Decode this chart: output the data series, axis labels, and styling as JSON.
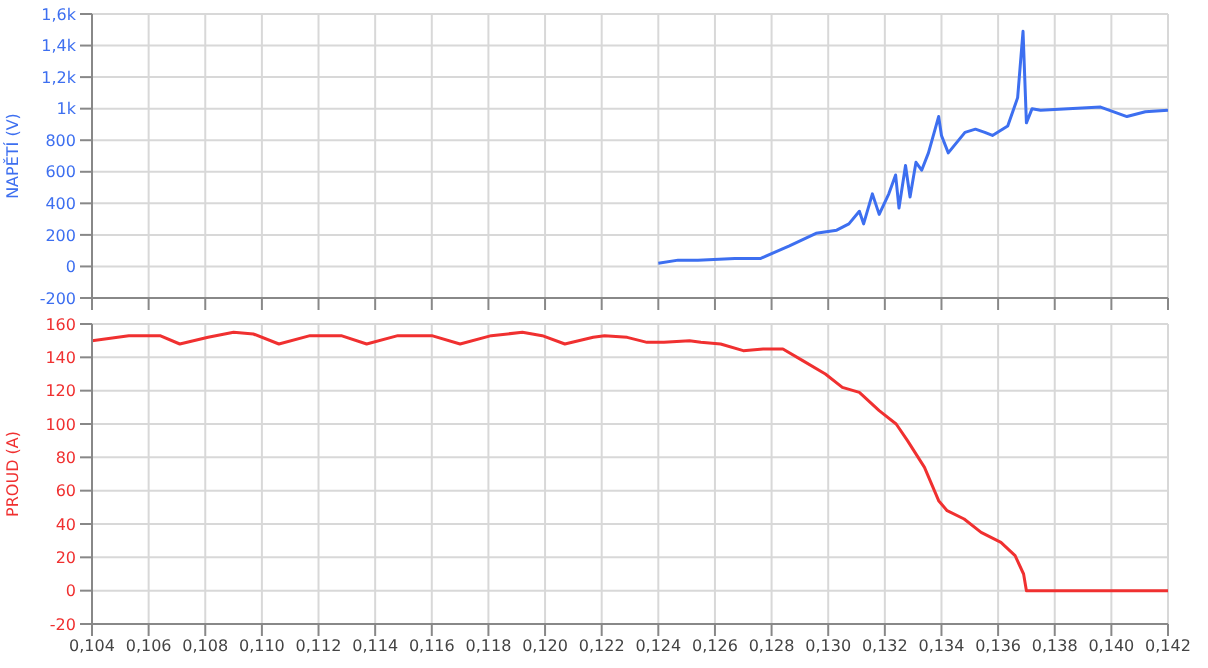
{
  "chart_data": [
    {
      "type": "line",
      "ylabel": "NAPĚTÍ (V)",
      "x": [
        0.124,
        0.1247,
        0.1254,
        0.1267,
        0.1276,
        0.12863,
        0.12957,
        0.1303,
        0.13073,
        0.1311,
        0.13125,
        0.13156,
        0.1318,
        0.13214,
        0.13238,
        0.1325,
        0.13273,
        0.13289,
        0.1331,
        0.1333,
        0.13354,
        0.1339,
        0.134,
        0.13424,
        0.13483,
        0.1352,
        0.13553,
        0.1358,
        0.13634,
        0.13669,
        0.13688,
        0.137,
        0.1372,
        0.1375,
        0.13962,
        0.14055,
        0.1412,
        0.142
      ],
      "series": [
        {
          "color": "#3d6ff0",
          "values": [
            20,
            40,
            40,
            50,
            50,
            130,
            210,
            230,
            270,
            350,
            270,
            460,
            330,
            460,
            580,
            370,
            640,
            440,
            660,
            610,
            720,
            950,
            830,
            720,
            850,
            870,
            850,
            830,
            890,
            1070,
            1490,
            910,
            1000,
            990,
            1010,
            950,
            980,
            990
          ]
        }
      ],
      "xlim": [
        0.104,
        0.142
      ],
      "xticks": [
        0.104,
        0.106,
        0.108,
        0.11,
        0.112,
        0.114,
        0.116,
        0.118,
        0.12,
        0.122,
        0.124,
        0.126,
        0.128,
        0.13,
        0.132,
        0.134,
        0.136,
        0.138,
        0.14,
        0.142
      ],
      "ylim": [
        -200,
        1600
      ],
      "yticks": [
        {
          "value": -200,
          "label": "-200"
        },
        {
          "value": 0,
          "label": "0"
        },
        {
          "value": 200,
          "label": "200"
        },
        {
          "value": 400,
          "label": "400"
        },
        {
          "value": 600,
          "label": "600"
        },
        {
          "value": 800,
          "label": "800"
        },
        {
          "value": 1000,
          "label": "1k"
        },
        {
          "value": 1200,
          "label": "1,2k"
        },
        {
          "value": 1400,
          "label": "1,4k"
        },
        {
          "value": 1600,
          "label": "1,6k"
        }
      ],
      "grid": true,
      "marker": "none",
      "tick_labels": "y"
    },
    {
      "type": "line",
      "ylabel": "PROUD (A)",
      "x": [
        0.104,
        0.1053,
        0.1064,
        0.1071,
        0.1081,
        0.109,
        0.1097,
        0.1106,
        0.1117,
        0.1128,
        0.1137,
        0.1148,
        0.116,
        0.117,
        0.1181,
        0.1192,
        0.1199,
        0.1207,
        0.1217,
        0.1221,
        0.1229,
        0.1236,
        0.1242,
        0.1251,
        0.1255,
        0.1262,
        0.127,
        0.1277,
        0.1284,
        0.1291,
        0.1299,
        0.1305,
        0.1311,
        0.1318,
        0.1324,
        0.1328,
        0.1334,
        0.1339,
        0.1342,
        0.1348,
        0.1354,
        0.1361,
        0.1366,
        0.1369,
        0.137,
        0.142
      ],
      "series": [
        {
          "color": "#f03030",
          "values": [
            150,
            153,
            153,
            148,
            152,
            155,
            154,
            148,
            153,
            153,
            148,
            153,
            153,
            148,
            153,
            155,
            153,
            148,
            152,
            153,
            152,
            149,
            149,
            150,
            149,
            148,
            144,
            145,
            145,
            138,
            130,
            122,
            119,
            108,
            100,
            90,
            74,
            54,
            48,
            43,
            35,
            29,
            21,
            10,
            0,
            0
          ]
        }
      ],
      "xlim": [
        0.104,
        0.142
      ],
      "xticks": [
        {
          "value": 0.104,
          "label": "0,104"
        },
        {
          "value": 0.106,
          "label": "0,106"
        },
        {
          "value": 0.108,
          "label": "0,108"
        },
        {
          "value": 0.11,
          "label": "0,110"
        },
        {
          "value": 0.112,
          "label": "0,112"
        },
        {
          "value": 0.114,
          "label": "0,114"
        },
        {
          "value": 0.116,
          "label": "0,116"
        },
        {
          "value": 0.118,
          "label": "0,118"
        },
        {
          "value": 0.12,
          "label": "0,120"
        },
        {
          "value": 0.122,
          "label": "0,122"
        },
        {
          "value": 0.124,
          "label": "0,124"
        },
        {
          "value": 0.126,
          "label": "0,126"
        },
        {
          "value": 0.128,
          "label": "0,128"
        },
        {
          "value": 0.13,
          "label": "0,130"
        },
        {
          "value": 0.132,
          "label": "0,132"
        },
        {
          "value": 0.134,
          "label": "0,134"
        },
        {
          "value": 0.136,
          "label": "0,136"
        },
        {
          "value": 0.138,
          "label": "0,138"
        },
        {
          "value": 0.14,
          "label": "0,140"
        },
        {
          "value": 0.142,
          "label": "0,142"
        }
      ],
      "ylim": [
        -20,
        160
      ],
      "yticks": [
        -20,
        0,
        20,
        40,
        60,
        80,
        100,
        120,
        140,
        160
      ],
      "grid": true,
      "marker": "none"
    }
  ]
}
